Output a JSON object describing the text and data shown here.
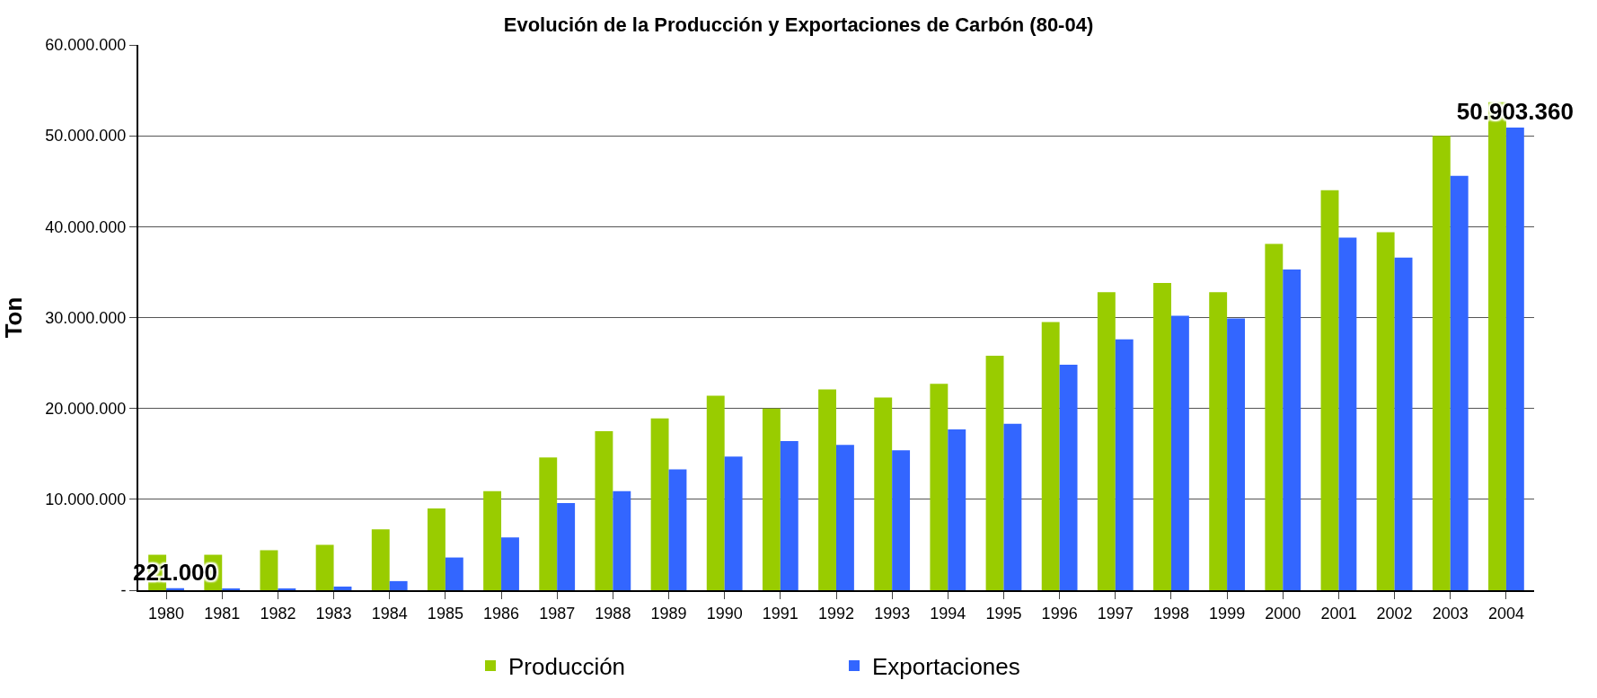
{
  "chart_data": {
    "type": "bar",
    "title": "Evolución de la Producción y Exportaciones de Carbón (80-04)",
    "ylabel": "Ton",
    "categories": [
      "1980",
      "1981",
      "1982",
      "1983",
      "1984",
      "1985",
      "1986",
      "1987",
      "1988",
      "1989",
      "1990",
      "1991",
      "1992",
      "1993",
      "1994",
      "1995",
      "1996",
      "1997",
      "1998",
      "1999",
      "2000",
      "2001",
      "2002",
      "2003",
      "2004"
    ],
    "series": [
      {
        "name": "Producción",
        "color": "#99cc00",
        "values": [
          3900000,
          3900000,
          4400000,
          5000000,
          6700000,
          9000000,
          10900000,
          14600000,
          17500000,
          18900000,
          21400000,
          20000000,
          22100000,
          21200000,
          22700000,
          25800000,
          29500000,
          32800000,
          33800000,
          32800000,
          38100000,
          44000000,
          39400000,
          50000000,
          53700000
        ]
      },
      {
        "name": "Exportaciones",
        "color": "#3366ff",
        "values": [
          221000,
          200000,
          200000,
          400000,
          1000000,
          3600000,
          5800000,
          9600000,
          10900000,
          13300000,
          14700000,
          16400000,
          16000000,
          15400000,
          17700000,
          18300000,
          24800000,
          27600000,
          30200000,
          29900000,
          35300000,
          38800000,
          36600000,
          45600000,
          50903360
        ],
        "value_labels": [
          "221.000",
          null,
          null,
          null,
          null,
          null,
          null,
          null,
          null,
          null,
          null,
          null,
          null,
          null,
          null,
          null,
          null,
          null,
          null,
          null,
          null,
          null,
          null,
          null,
          "50.903.360"
        ]
      }
    ],
    "ylim": [
      0,
      60000000
    ],
    "yticks": [
      {
        "value": 0,
        "label": "-"
      },
      {
        "value": 10000000,
        "label": "10.000.000"
      },
      {
        "value": 20000000,
        "label": "20.000.000"
      },
      {
        "value": 30000000,
        "label": "30.000.000"
      },
      {
        "value": 40000000,
        "label": "40.000.000"
      },
      {
        "value": 50000000,
        "label": "50.000.000"
      },
      {
        "value": 60000000,
        "label": "60.000.000"
      }
    ],
    "grid": "y",
    "legend": "bottom"
  }
}
